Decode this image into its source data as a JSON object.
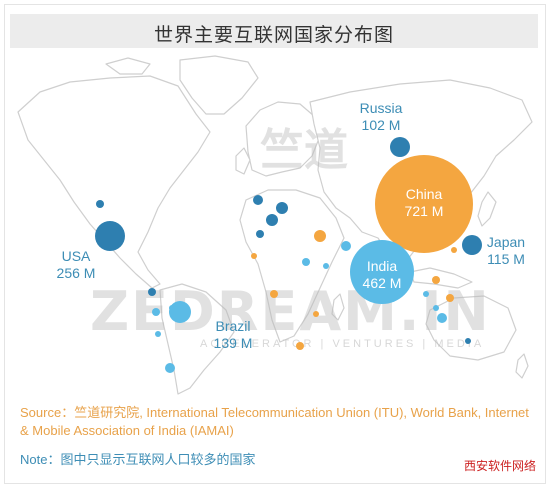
{
  "title": "世界主要互联网国家分布图",
  "colors": {
    "blue_dark": "#2e7fb0",
    "blue_light": "#5bbbe6",
    "orange": "#f4a640",
    "land_stroke": "#cfcfcf",
    "source_text": "#e8a24a",
    "note_text": "#3d8db5"
  },
  "countries": [
    {
      "name": "China",
      "value": "721 M",
      "users_m": 721,
      "color": "orange"
    },
    {
      "name": "India",
      "value": "462 M",
      "users_m": 462,
      "color": "blue_light"
    },
    {
      "name": "USA",
      "value": "256 M",
      "users_m": 256,
      "color": "blue_dark"
    },
    {
      "name": "Brazil",
      "value": "139 M",
      "users_m": 139,
      "color": "blue_light"
    },
    {
      "name": "Japan",
      "value": "115 M",
      "users_m": 115,
      "color": "blue_dark"
    },
    {
      "name": "Russia",
      "value": "102 M",
      "users_m": 102,
      "color": "blue_dark"
    }
  ],
  "watermark": {
    "top_brand": "竺道",
    "mid_brand": "ZEDREAM.IN",
    "tagline": "ACCELERATOR | VENTURES | MEDIA"
  },
  "source": "Source：竺道研究院, International Telecommunication Union (ITU), World Bank, Internet & Mobile Association of India (IAMAI)",
  "note": "Note：图中只显示互联网人口较多的国家",
  "site_mark": "西安软件网络"
}
